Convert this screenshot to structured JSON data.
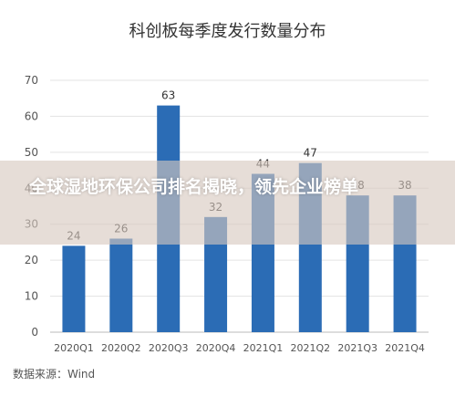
{
  "chart_data": {
    "type": "bar",
    "title": "科创板每季度发行数量分布",
    "categories": [
      "2020Q1",
      "2020Q2",
      "2020Q3",
      "2020Q4",
      "2021Q1",
      "2021Q2",
      "2021Q3",
      "2021Q4"
    ],
    "values": [
      24,
      26,
      63,
      32,
      44,
      47,
      38,
      38
    ],
    "xlabel": "",
    "ylabel": "",
    "ylim": [
      0,
      70
    ],
    "yticks": [
      0,
      10,
      20,
      30,
      40,
      50,
      60,
      70
    ],
    "grid": true,
    "legend": "none",
    "bar_color": "#2b6cb5",
    "label_color": "#333333",
    "source": "数据来源：Wind"
  },
  "overlay": {
    "headline": "全球湿地环保公司排名揭晓，领先企业榜单"
  }
}
